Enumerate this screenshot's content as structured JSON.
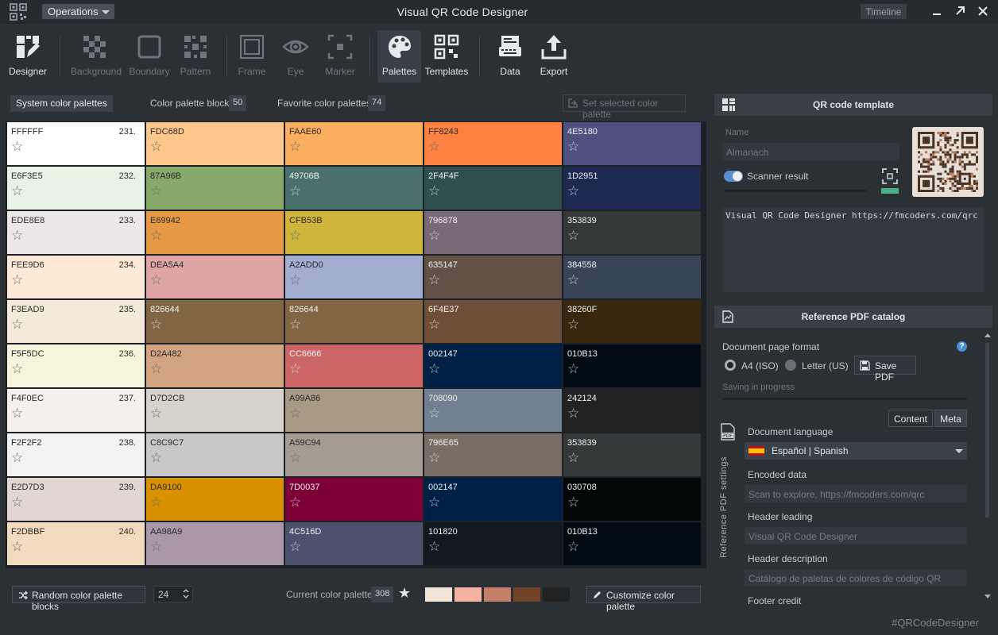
{
  "window": {
    "title": "Visual QR Code Designer",
    "operations_label": "Operations",
    "timeline_label": "Timeline"
  },
  "toolbar": [
    {
      "label": "Designer",
      "icon": "designer-icon",
      "enabled": true
    },
    {
      "label": "Background",
      "icon": "background-icon",
      "enabled": false
    },
    {
      "label": "Boundary",
      "icon": "boundary-icon",
      "enabled": false
    },
    {
      "label": "Pattern",
      "icon": "pattern-icon",
      "enabled": false
    },
    {
      "label": "Frame",
      "icon": "frame-icon",
      "enabled": false
    },
    {
      "label": "Eye",
      "icon": "eye-icon",
      "enabled": false
    },
    {
      "label": "Marker",
      "icon": "marker-icon",
      "enabled": false
    },
    {
      "label": "Palettes",
      "icon": "palette-icon",
      "enabled": true,
      "active": true
    },
    {
      "label": "Templates",
      "icon": "templates-icon",
      "enabled": true
    },
    {
      "label": "Data",
      "icon": "data-icon",
      "enabled": true
    },
    {
      "label": "Export",
      "icon": "export-icon",
      "enabled": true
    }
  ],
  "tabs": {
    "system": "System color palettes",
    "blocks": "Color palette blocks",
    "blocks_count": "50",
    "favorites": "Favorite color palettes",
    "favorites_count": "74",
    "set_selected": "Set selected color palette"
  },
  "palettes": [
    {
      "num": "231.",
      "colors": [
        "FFFFFF",
        "FDC68D",
        "FAAE60",
        "FF8243",
        "4E5180"
      ]
    },
    {
      "num": "232.",
      "colors": [
        "E6F3E5",
        "87A96B",
        "49706B",
        "2F4F4F",
        "1D2951"
      ]
    },
    {
      "num": "233.",
      "colors": [
        "EDE8E8",
        "E69942",
        "CFB53B",
        "796878",
        "353839"
      ]
    },
    {
      "num": "234.",
      "colors": [
        "FEE9D6",
        "DEA5A4",
        "A2ADD0",
        "635147",
        "384558"
      ]
    },
    {
      "num": "235.",
      "colors": [
        "F3EAD9",
        "826644",
        "826644",
        "6F4E37",
        "38260F"
      ]
    },
    {
      "num": "236.",
      "colors": [
        "F5F5DC",
        "D2A482",
        "CC6666",
        "002147",
        "010B13"
      ]
    },
    {
      "num": "237.",
      "colors": [
        "F4F0EC",
        "D7D2CB",
        "A99A86",
        "708090",
        "242124"
      ]
    },
    {
      "num": "238.",
      "colors": [
        "F2F2F2",
        "C8C9C7",
        "A59C94",
        "796E65",
        "353839"
      ]
    },
    {
      "num": "239.",
      "colors": [
        "E2D7D3",
        "DA9100",
        "7D0037",
        "002147",
        "030708"
      ]
    },
    {
      "num": "240.",
      "colors": [
        "F2DBBF",
        "AA98A9",
        "4C516D",
        "101820",
        "010B13"
      ]
    }
  ],
  "bottom": {
    "random_button": "Random color palette blocks",
    "spin_value": "24",
    "current_label": "Current color palette",
    "current_number": "308",
    "current_colors": [
      "#F2E6DA",
      "#F6B3A2",
      "#C47F69",
      "#6F4428",
      "#222222"
    ],
    "customize_button": "Customize color palette"
  },
  "qr_template": {
    "header": "QR code template",
    "name_label": "Name",
    "name_value": "Almanach",
    "scanner_label": "Scanner result",
    "content_text": "Visual QR Code Designer https://fmcoders.com/qrc"
  },
  "pdf": {
    "header": "Reference PDF catalog",
    "page_format_label": "Document page format",
    "option_a4": "A4 (ISO)",
    "option_letter": "Letter (US)",
    "save_button": "Save PDF",
    "progress_label": "Saving in progress",
    "tab_content": "Content",
    "tab_meta": "Meta",
    "side_label": "Reference PDF settings",
    "language_label": "Document language",
    "language_value": "Español  |  Spanish",
    "encoded_label": "Encoded data",
    "encoded_value": "Scan to explore,  https://fmcoders.com/qrc",
    "header_leading_label": "Header leading",
    "header_leading_value": "Visual QR Code Designer",
    "header_desc_label": "Header description",
    "header_desc_value": "Catálogo de paletas de colores de código QR",
    "footer_label": "Footer credit"
  },
  "footer_tag": "#QRCodeDesigner"
}
